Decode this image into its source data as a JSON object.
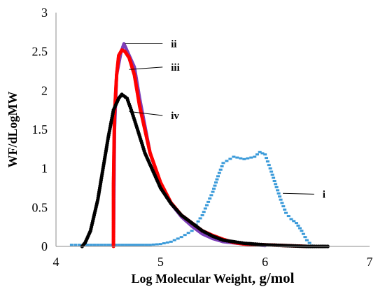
{
  "chart_data": {
    "type": "scatter",
    "title": "",
    "xlabel_main": "Log Molecular Weight",
    "xlabel_unit": ", g/mol",
    "ylabel": "WF/dLogMW",
    "xlim": [
      4,
      7
    ],
    "ylim": [
      0,
      3
    ],
    "x_ticks": [
      4,
      5,
      6,
      7
    ],
    "y_ticks": [
      0,
      0.5,
      1,
      1.5,
      2,
      2.5,
      3
    ],
    "grid": false,
    "legend": "none",
    "series": [
      {
        "label": "i",
        "color": "#3a9ad9",
        "points": [
          [
            4.15,
            0.02
          ],
          [
            4.3,
            0.02
          ],
          [
            4.5,
            0.02
          ],
          [
            4.7,
            0.02
          ],
          [
            4.9,
            0.02
          ],
          [
            5.0,
            0.03
          ],
          [
            5.1,
            0.06
          ],
          [
            5.2,
            0.12
          ],
          [
            5.3,
            0.2
          ],
          [
            5.4,
            0.4
          ],
          [
            5.5,
            0.7
          ],
          [
            5.55,
            0.9
          ],
          [
            5.6,
            1.07
          ],
          [
            5.7,
            1.15
          ],
          [
            5.8,
            1.12
          ],
          [
            5.9,
            1.15
          ],
          [
            5.95,
            1.21
          ],
          [
            6.0,
            1.18
          ],
          [
            6.05,
            1.0
          ],
          [
            6.1,
            0.8
          ],
          [
            6.15,
            0.6
          ],
          [
            6.2,
            0.43
          ],
          [
            6.25,
            0.35
          ],
          [
            6.3,
            0.3
          ],
          [
            6.35,
            0.2
          ],
          [
            6.4,
            0.08
          ],
          [
            6.45,
            0.01
          ]
        ]
      },
      {
        "label": "ii",
        "color": "#7d3fb8",
        "points": [
          [
            4.55,
            0.02
          ],
          [
            4.56,
            1.5
          ],
          [
            4.58,
            2.2
          ],
          [
            4.62,
            2.48
          ],
          [
            4.65,
            2.6
          ],
          [
            4.7,
            2.45
          ],
          [
            4.75,
            2.3
          ],
          [
            4.8,
            1.9
          ],
          [
            4.9,
            1.2
          ],
          [
            5.0,
            0.8
          ],
          [
            5.1,
            0.55
          ],
          [
            5.2,
            0.38
          ],
          [
            5.3,
            0.26
          ],
          [
            5.4,
            0.16
          ],
          [
            5.5,
            0.1
          ],
          [
            5.6,
            0.06
          ],
          [
            5.8,
            0.03
          ],
          [
            6.0,
            0.01
          ]
        ]
      },
      {
        "label": "iii",
        "color": "#ff0000",
        "points": [
          [
            4.55,
            0.0
          ],
          [
            4.55,
            0.8
          ],
          [
            4.56,
            1.7
          ],
          [
            4.58,
            2.2
          ],
          [
            4.6,
            2.45
          ],
          [
            4.63,
            2.52
          ],
          [
            4.66,
            2.5
          ],
          [
            4.7,
            2.42
          ],
          [
            4.75,
            2.2
          ],
          [
            4.8,
            1.8
          ],
          [
            4.85,
            1.5
          ],
          [
            4.9,
            1.2
          ],
          [
            5.0,
            0.82
          ],
          [
            5.1,
            0.56
          ],
          [
            5.2,
            0.4
          ],
          [
            5.3,
            0.3
          ],
          [
            5.4,
            0.2
          ],
          [
            5.5,
            0.14
          ],
          [
            5.6,
            0.09
          ],
          [
            5.7,
            0.05
          ],
          [
            5.8,
            0.03
          ],
          [
            6.0,
            0.02
          ],
          [
            6.2,
            0.01
          ],
          [
            6.4,
            0.0
          ]
        ]
      },
      {
        "label": "iv",
        "color": "#000000",
        "points": [
          [
            4.25,
            0.0
          ],
          [
            4.28,
            0.05
          ],
          [
            4.33,
            0.2
          ],
          [
            4.4,
            0.6
          ],
          [
            4.45,
            1.0
          ],
          [
            4.5,
            1.4
          ],
          [
            4.55,
            1.75
          ],
          [
            4.6,
            1.9
          ],
          [
            4.63,
            1.95
          ],
          [
            4.68,
            1.9
          ],
          [
            4.72,
            1.75
          ],
          [
            4.78,
            1.5
          ],
          [
            4.85,
            1.2
          ],
          [
            4.9,
            1.05
          ],
          [
            5.0,
            0.75
          ],
          [
            5.1,
            0.55
          ],
          [
            5.2,
            0.4
          ],
          [
            5.3,
            0.3
          ],
          [
            5.4,
            0.2
          ],
          [
            5.5,
            0.13
          ],
          [
            5.6,
            0.08
          ],
          [
            5.8,
            0.04
          ],
          [
            6.0,
            0.02
          ],
          [
            6.2,
            0.01
          ],
          [
            6.4,
            0.0
          ],
          [
            6.6,
            0.0
          ]
        ]
      }
    ],
    "annotations": [
      {
        "text": "ii",
        "anchor": [
          4.66,
          2.6
        ],
        "label_pos": [
          5.1,
          2.6
        ]
      },
      {
        "text": "iii",
        "anchor": [
          4.7,
          2.27
        ],
        "label_pos": [
          5.1,
          2.3
        ]
      },
      {
        "text": "iv",
        "anchor": [
          4.7,
          1.73
        ],
        "label_pos": [
          5.1,
          1.68
        ]
      },
      {
        "text": "i",
        "anchor": [
          6.17,
          0.68
        ],
        "label_pos": [
          6.55,
          0.67
        ]
      }
    ]
  }
}
